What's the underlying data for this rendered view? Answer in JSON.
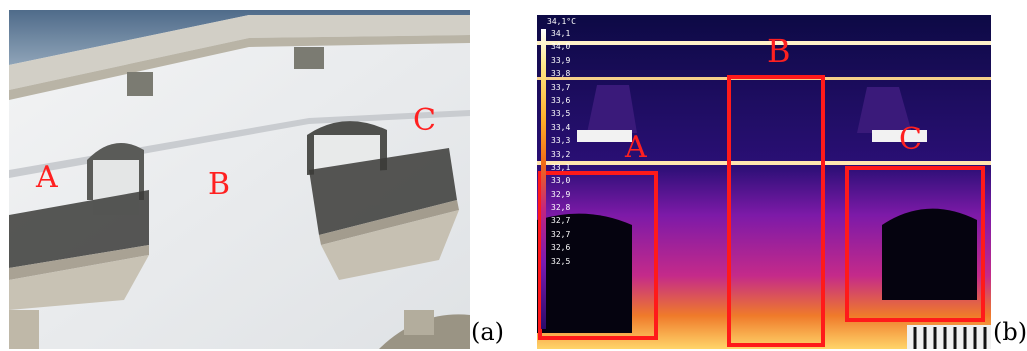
{
  "panel_a": {
    "labels": {
      "a": "A",
      "b": "B",
      "c": "C"
    },
    "caption": "(a)"
  },
  "panel_b": {
    "labels": {
      "a": "A",
      "b": "B",
      "c": "C"
    },
    "caption": "(b)",
    "scale_max": "34,1°C",
    "scale_ticks": [
      "34,1",
      "34,0",
      "33,9",
      "33,8",
      "33,7",
      "33,6",
      "33,5",
      "33,4",
      "33,3",
      "33,2",
      "33,1",
      "33,0",
      "32,9",
      "32,8",
      "32,7",
      "32,7",
      "32,6",
      "32,5"
    ],
    "colors": {
      "box": "#ff1a1a",
      "background": "#0d0a45"
    }
  }
}
